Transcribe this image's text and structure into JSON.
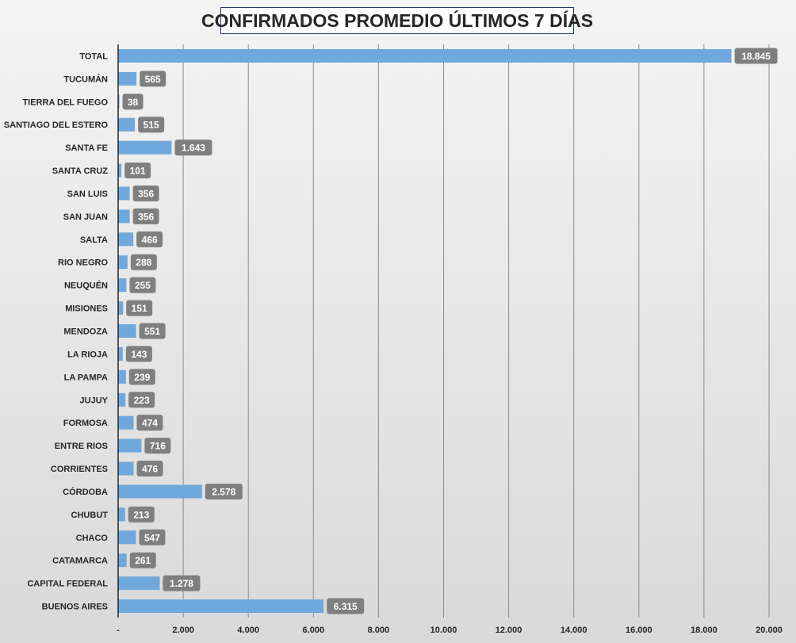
{
  "chart_data": {
    "type": "bar",
    "orientation": "horizontal",
    "title": "CONFIRMADOS PROMEDIO ÚLTIMOS 7 DÍAS",
    "xlabel": "",
    "ylabel": "",
    "categories": [
      "TOTAL",
      "TUCUMÁN",
      "TIERRA DEL FUEGO",
      "SANTIAGO DEL ESTERO",
      "SANTA FE",
      "SANTA CRUZ",
      "SAN LUIS",
      "SAN JUAN",
      "SALTA",
      "RIO NEGRO",
      "NEUQUÉN",
      "MISIONES",
      "MENDOZA",
      "LA RIOJA",
      "LA PAMPA",
      "JUJUY",
      "FORMOSA",
      "ENTRE RIOS",
      "CORRIENTES",
      "CÓRDOBA",
      "CHUBUT",
      "CHACO",
      "CATAMARCA",
      "CAPITAL FEDERAL",
      "BUENOS AIRES"
    ],
    "values": [
      18845,
      565,
      38,
      515,
      1643,
      101,
      356,
      356,
      466,
      288,
      255,
      151,
      551,
      143,
      239,
      223,
      474,
      716,
      476,
      2578,
      213,
      547,
      261,
      1278,
      6315
    ],
    "value_labels": [
      "18.845",
      "565",
      "38",
      "515",
      "1.643",
      "101",
      "356",
      "356",
      "466",
      "288",
      "255",
      "151",
      "551",
      "143",
      "239",
      "223",
      "474",
      "716",
      "476",
      "2.578",
      "213",
      "547",
      "261",
      "1.278",
      "6.315"
    ],
    "xlim": [
      0,
      20000
    ],
    "x_ticks": [
      0,
      2000,
      4000,
      6000,
      8000,
      10000,
      12000,
      14000,
      16000,
      18000,
      20000
    ],
    "x_tick_labels": [
      "-",
      "2.000",
      "4.000",
      "6.000",
      "8.000",
      "10.000",
      "12.000",
      "14.000",
      "16.000",
      "18.000",
      "20.000"
    ],
    "grid": "vertical",
    "legend": "none",
    "colors": {
      "bar": "#6fa8dc",
      "data_label_bg": "#7f7f7f",
      "data_label_text": "#ffffff",
      "gridline": "#8c8c8c",
      "title_border": "#1f3864"
    }
  }
}
